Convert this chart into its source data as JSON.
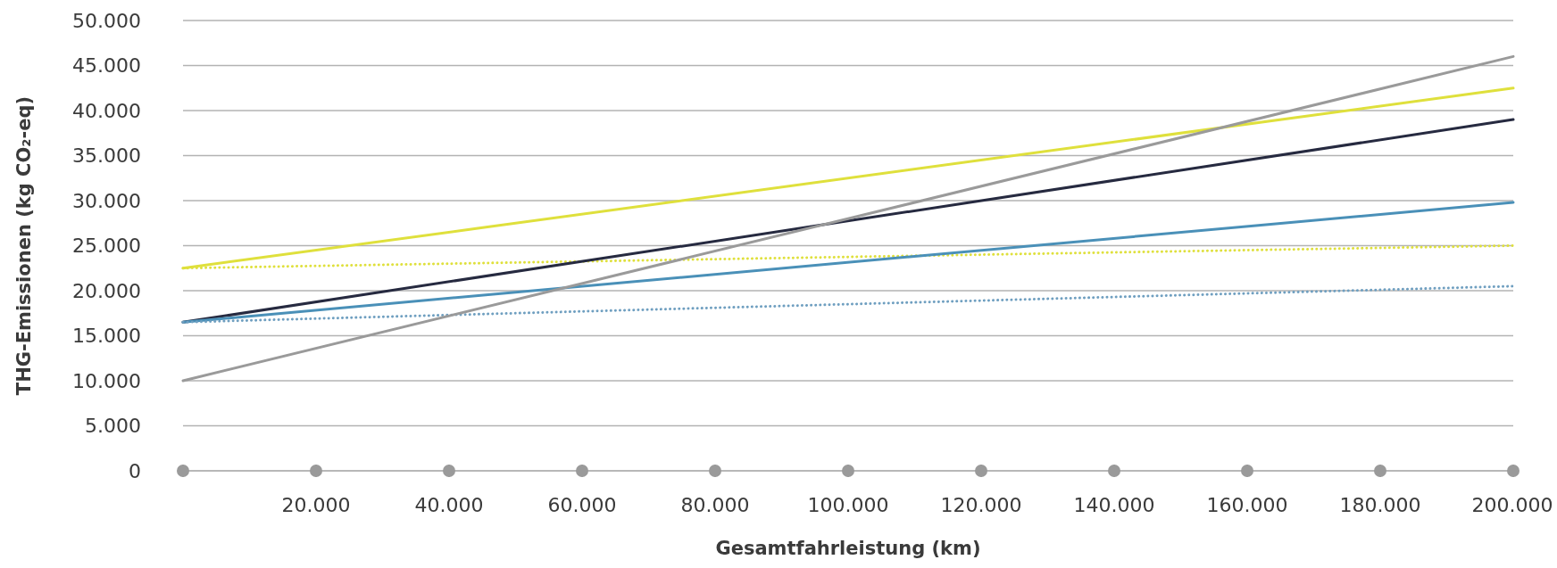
{
  "chart_data": {
    "type": "line",
    "xlabel": "Gesamtfahrleistung (km)",
    "ylabel": "THG-Emissionen (kg CO₂-eq)",
    "xlim": [
      0,
      200000
    ],
    "xticks": [
      {
        "value": 0,
        "label": null
      },
      {
        "value": 20000,
        "label": "20.000"
      },
      {
        "value": 40000,
        "label": "40.000"
      },
      {
        "value": 60000,
        "label": "60.000"
      },
      {
        "value": 80000,
        "label": "80.000"
      },
      {
        "value": 100000,
        "label": "100.000"
      },
      {
        "value": 120000,
        "label": "120.000"
      },
      {
        "value": 140000,
        "label": "140.000"
      },
      {
        "value": 160000,
        "label": "160.000"
      },
      {
        "value": 180000,
        "label": "180.000"
      },
      {
        "value": 200000,
        "label": "200.000"
      }
    ],
    "ylim": [
      0,
      50000
    ],
    "yticks": [
      0,
      {
        "value": 5000,
        "label": "5.000"
      },
      {
        "value": 10000,
        "label": "10.000"
      },
      {
        "value": 15000,
        "label": "15.000"
      },
      {
        "value": 20000,
        "label": "20.000"
      },
      {
        "value": 25000,
        "label": "25.000"
      },
      {
        "value": 30000,
        "label": "30.000"
      },
      {
        "value": 35000,
        "label": "35.000"
      },
      {
        "value": 40000,
        "label": "40.000"
      },
      {
        "value": 45000,
        "label": "45.000"
      },
      {
        "value": 50000,
        "label": "50.000"
      }
    ],
    "grid": "y",
    "marker": "none",
    "x": [
      0,
      200000
    ],
    "series": [
      {
        "color": "#dfe03c",
        "line_style": "solid",
        "values": [
          22500,
          42500
        ]
      },
      {
        "color": "#dfe03c",
        "line_style": "dotted",
        "values": [
          22500,
          25000
        ]
      },
      {
        "color": "#262a40",
        "line_style": "solid",
        "values": [
          16500,
          39000
        ]
      },
      {
        "color": "#4a90b8",
        "line_style": "solid",
        "values": [
          16500,
          29800
        ]
      },
      {
        "color": "#6f9fc0",
        "line_style": "dotted",
        "values": [
          16500,
          20500
        ]
      },
      {
        "color": "#9a9a9a",
        "line_style": "solid",
        "values": [
          10000,
          46000
        ]
      }
    ]
  }
}
